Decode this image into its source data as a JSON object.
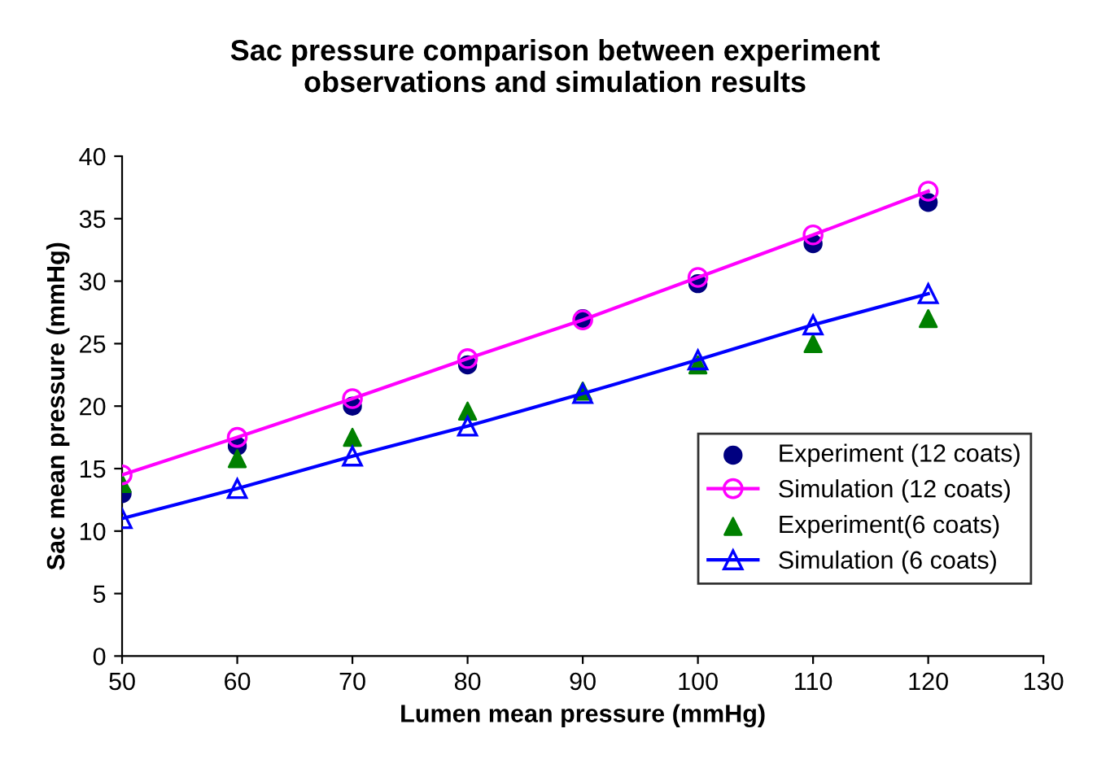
{
  "chart_data": {
    "type": "line",
    "title": "Sac pressure comparison between experiment\nobservations and simulation results",
    "xlabel": "Lumen mean pressure (mmHg)",
    "ylabel": "Sac mean pressure (mmHg)",
    "x": [
      50,
      60,
      70,
      80,
      90,
      100,
      110,
      120
    ],
    "series": [
      {
        "name": "Experiment (12 coats)",
        "type": "scatter",
        "marker": "circle",
        "color": "#000080",
        "values": [
          13,
          16.8,
          20,
          23.3,
          27,
          29.8,
          33,
          36.3
        ]
      },
      {
        "name": "Simulation (12 coats)",
        "marker": "circle",
        "color": "#ff00ff",
        "values": [
          14.5,
          17.5,
          20.6,
          23.8,
          26.9,
          30.3,
          33.7,
          37.2
        ]
      },
      {
        "name": "Experiment(6 coats)",
        "type": "scatter",
        "marker": "triangle",
        "color": "#008000",
        "values": [
          13.8,
          15.8,
          17.5,
          19.6,
          21.2,
          23.3,
          25,
          27
        ]
      },
      {
        "name": "Simulation (6 coats)",
        "marker": "triangle",
        "color": "#0000ff",
        "values": [
          11,
          13.4,
          16,
          18.4,
          21,
          23.7,
          26.5,
          29
        ]
      }
    ],
    "xlim": [
      50,
      130
    ],
    "xticks": [
      50,
      60,
      70,
      80,
      90,
      100,
      110,
      120,
      130
    ],
    "ylim": [
      0,
      40
    ],
    "yticks": [
      0,
      5,
      10,
      15,
      20,
      25,
      30,
      35,
      40
    ],
    "grid": false,
    "legend": "lower right"
  }
}
